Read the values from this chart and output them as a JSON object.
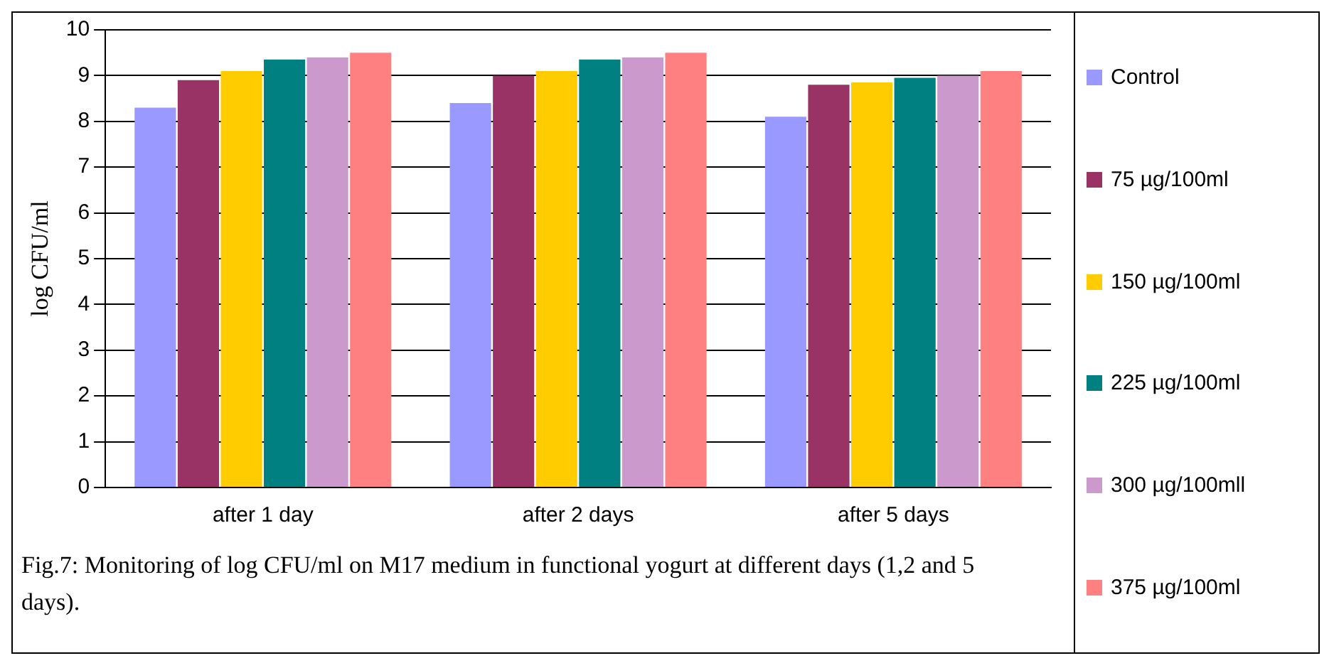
{
  "chart_data": {
    "type": "bar",
    "ylabel": "log CFU/ml",
    "categories": [
      "after 1 day",
      "after 2 days",
      "after 5 days"
    ],
    "series": [
      {
        "name": "Control",
        "color": "#9999ff",
        "values": [
          8.3,
          8.4,
          8.1
        ]
      },
      {
        "name": "75 µg/100ml",
        "color": "#993366",
        "values": [
          8.9,
          9.0,
          8.8
        ]
      },
      {
        "name": "150 µg/100ml",
        "color": "#ffcc00",
        "values": [
          9.1,
          9.1,
          8.85
        ]
      },
      {
        "name": "225 µg/100ml",
        "color": "#008080",
        "values": [
          9.35,
          9.35,
          8.95
        ]
      },
      {
        "name": "300 µg/100mll",
        "color": "#cc99cc",
        "values": [
          9.4,
          9.4,
          9.0
        ]
      },
      {
        "name": "375 µg/100ml",
        "color": "#ff8080",
        "values": [
          9.5,
          9.5,
          9.1
        ]
      }
    ],
    "ylim": [
      0,
      10
    ],
    "yticks": [
      0,
      1,
      2,
      3,
      4,
      5,
      6,
      7,
      8,
      9,
      10
    ],
    "grid": "y",
    "legend": "right",
    "annotations": [
      "Fig.7: Monitoring of  log CFU/ml on M17 medium in functional yogurt at different days (1,2 and 5 days)."
    ]
  }
}
